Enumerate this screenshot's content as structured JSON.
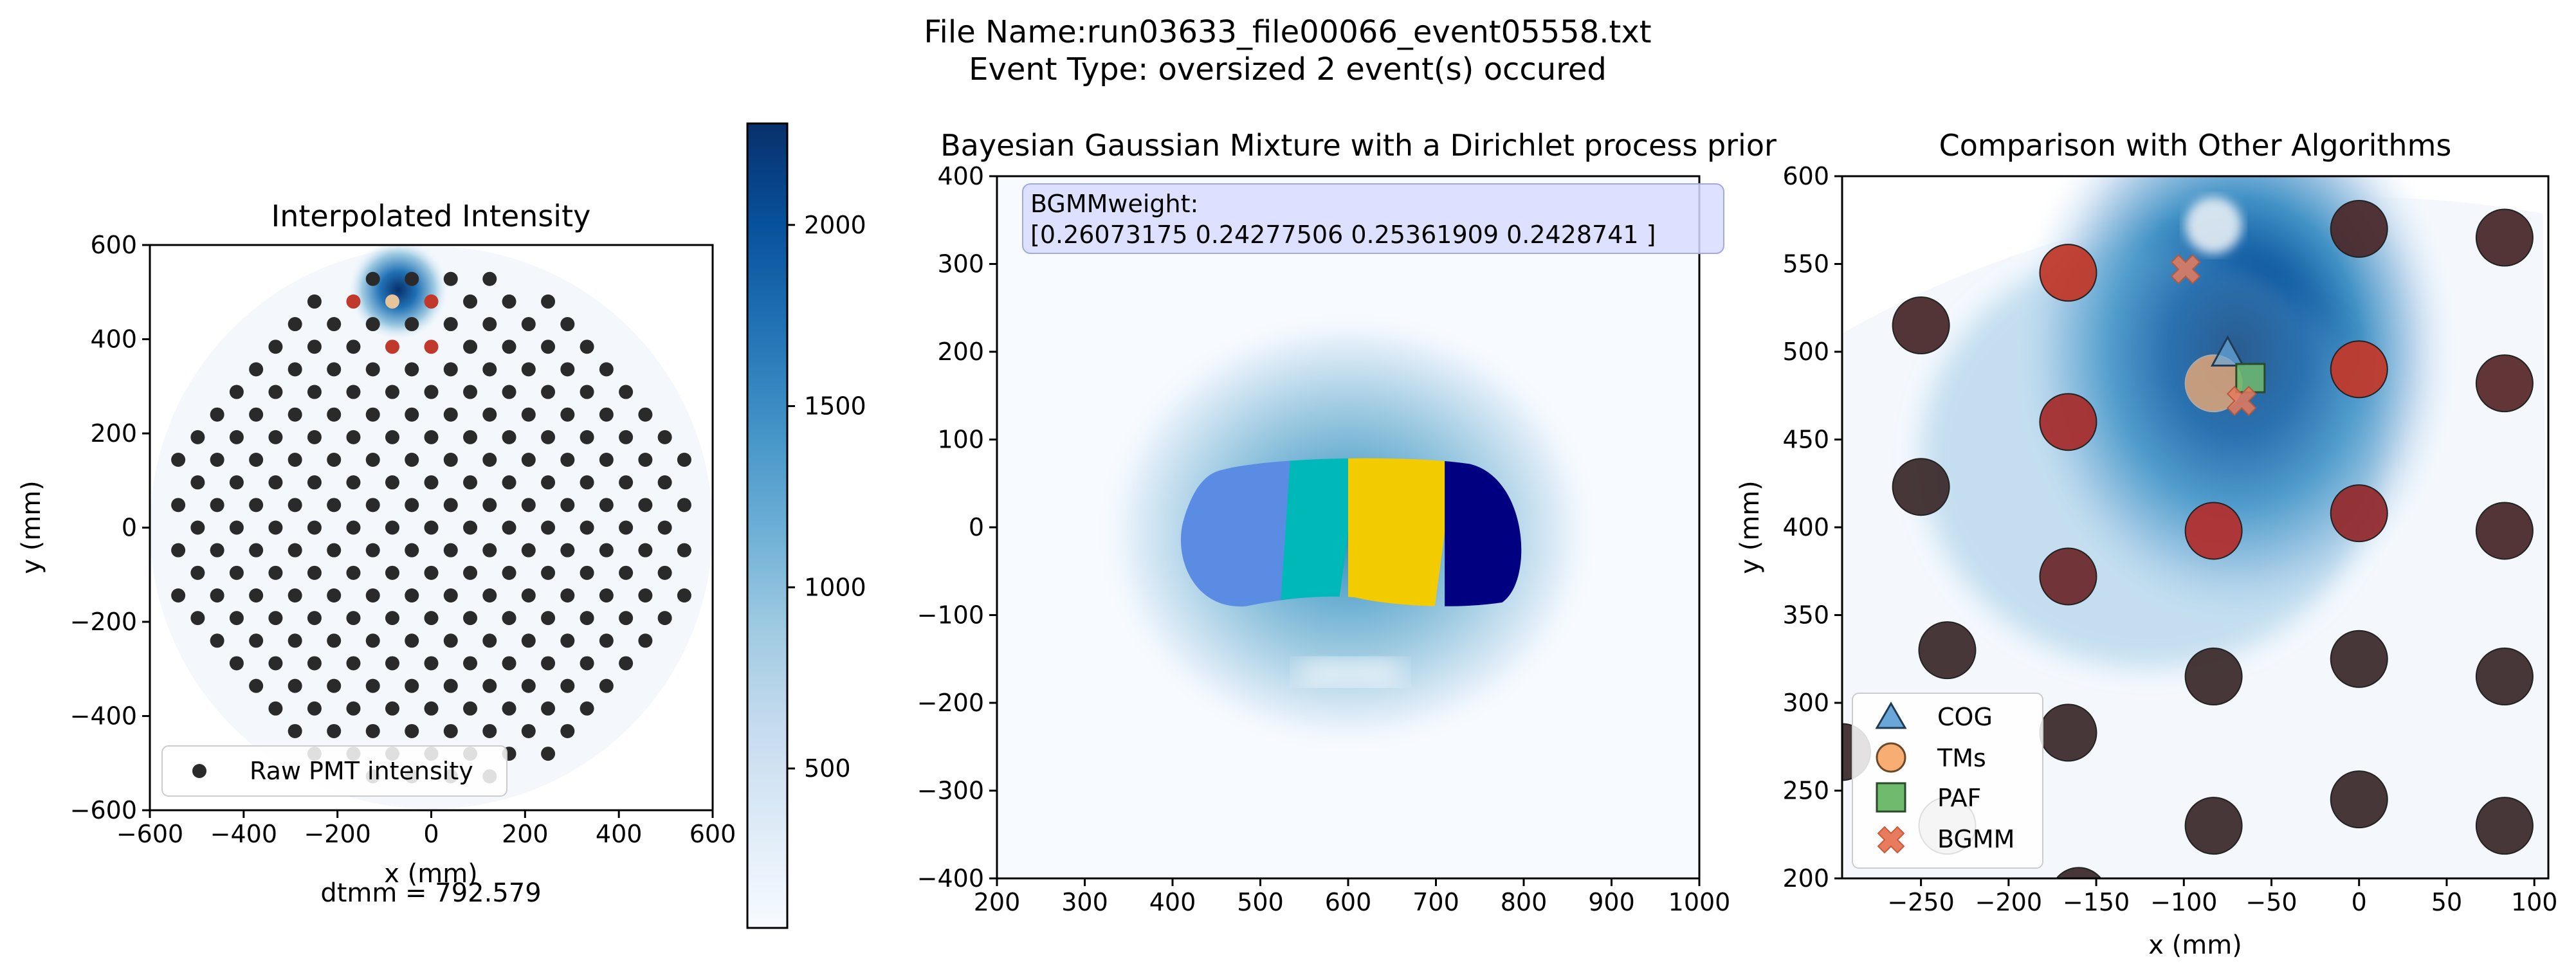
{
  "figure": {
    "suptitle_line1": "File Name:run03633_file00066_event05558.txt",
    "suptitle_line2": "Event Type: oversized    2 event(s) occured"
  },
  "chart_data": [
    {
      "type": "scatter",
      "title": "Interpolated Intensity",
      "xlabel": "x (mm)",
      "ylabel": "y (mm)",
      "xlim": [
        -600,
        600
      ],
      "ylim": [
        -600,
        600
      ],
      "xticks": [
        "−600",
        "−400",
        "−200",
        "0",
        "200",
        "400",
        "600"
      ],
      "yticks": [
        "−600",
        "−400",
        "−200",
        "0",
        "200",
        "400",
        "600"
      ],
      "background": "interpolated intensity heatmap (Blues), hot spot near (-70, 500)",
      "detector_radius_mm": 600,
      "pmt_pitch_x_mm": 83,
      "pmt_pitch_y_mm": 48,
      "pmt_color": "#2a2a2a",
      "hit_color": "#c0392b",
      "peak_color": "#e8c49a",
      "hit_pmts": [
        {
          "x": -166,
          "y": 545
        },
        {
          "x": 0,
          "y": 570
        },
        {
          "x": -83,
          "y": 570
        },
        {
          "x": -166,
          "y": 460
        },
        {
          "x": 0,
          "y": 490
        },
        {
          "x": -83,
          "y": 400
        },
        {
          "x": 0,
          "y": 410
        }
      ],
      "peak_pmt": {
        "x": -83,
        "y": 480
      },
      "legend": [
        "Raw PMT intensity"
      ],
      "legend_loc": "lower-left",
      "annotation": "dtmm = 792.579",
      "colorbar": {
        "cmap": "Blues",
        "min": 60,
        "max": 2280,
        "ticks": [
          "500",
          "1000",
          "1500",
          "2000"
        ],
        "tick_values": [
          500,
          1000,
          1500,
          2000
        ]
      }
    },
    {
      "type": "heatmap",
      "title": "Bayesian Gaussian Mixture with a Dirichlet process prior",
      "xlim": [
        200,
        1000
      ],
      "ylim": [
        -400,
        400
      ],
      "xticks": [
        "200",
        "300",
        "400",
        "500",
        "600",
        "700",
        "800",
        "900",
        "1000"
      ],
      "yticks": [
        "−400",
        "−300",
        "−200",
        "−100",
        "0",
        "100",
        "200",
        "300",
        "400"
      ],
      "annotation_line1": "BGMMweight:",
      "annotation_line2": "[0.26073175 0.24277506 0.25361909 0.2428741 ]",
      "weights": [
        0.26073175,
        0.24277506,
        0.25361909,
        0.2428741
      ],
      "cluster_colors": [
        "#5b8ce3",
        "#00b8b8",
        "#f2cc00",
        "#000080"
      ],
      "cluster_x_ranges": [
        [
          410,
          535
        ],
        [
          535,
          600
        ],
        [
          600,
          710
        ],
        [
          710,
          790
        ]
      ],
      "blob_y_range": [
        -90,
        78
      ]
    },
    {
      "type": "scatter",
      "title": "Comparison with Other Algorithms",
      "xlabel": "x (mm)",
      "ylabel": "y (mm)",
      "xlim": [
        -295,
        108
      ],
      "ylim": [
        200,
        600
      ],
      "xticks": [
        "−250",
        "−200",
        "−150",
        "−100",
        "−50",
        "0",
        "50",
        "100"
      ],
      "yticks": [
        "200",
        "250",
        "300",
        "350",
        "400",
        "450",
        "500",
        "550",
        "600"
      ],
      "pmts": [
        {
          "x": 0,
          "y": 570,
          "c": "#4a2a2c"
        },
        {
          "x": 83,
          "y": 565,
          "c": "#4a2a2c"
        },
        {
          "x": -166,
          "y": 545,
          "c": "#c0392b"
        },
        {
          "x": -250,
          "y": 515,
          "c": "#4a2a2c"
        },
        {
          "x": 0,
          "y": 490,
          "c": "#c0392b"
        },
        {
          "x": 83,
          "y": 482,
          "c": "#5a2a2c"
        },
        {
          "x": -166,
          "y": 460,
          "c": "#a52e2e"
        },
        {
          "x": -250,
          "y": 423,
          "c": "#3d2c2d"
        },
        {
          "x": -83,
          "y": 398,
          "c": "#b02f2f"
        },
        {
          "x": 0,
          "y": 408,
          "c": "#922b2e"
        },
        {
          "x": 83,
          "y": 398,
          "c": "#4a2a2c"
        },
        {
          "x": -166,
          "y": 372,
          "c": "#6b2a2e"
        },
        {
          "x": -235,
          "y": 330,
          "c": "#3d2c2d"
        },
        {
          "x": -83,
          "y": 315,
          "c": "#3d2c2d"
        },
        {
          "x": 0,
          "y": 325,
          "c": "#3d2c2d"
        },
        {
          "x": 83,
          "y": 315,
          "c": "#3d2c2d"
        },
        {
          "x": -166,
          "y": 283,
          "c": "#3d2c2d"
        },
        {
          "x": -295,
          "y": 272,
          "c": "#3d2c2d"
        },
        {
          "x": -83,
          "y": 230,
          "c": "#3d2c2d"
        },
        {
          "x": 0,
          "y": 245,
          "c": "#3d2c2d"
        },
        {
          "x": 83,
          "y": 230,
          "c": "#3d2c2d"
        },
        {
          "x": -235,
          "y": 230,
          "c": "#b5b5b5"
        },
        {
          "x": -160,
          "y": 190,
          "c": "#3d2c2d"
        }
      ],
      "tms_point": {
        "x": -83,
        "y": 482
      },
      "white_blob": {
        "x": -83,
        "y": 572
      },
      "cog": {
        "x": -75,
        "y": 498
      },
      "paf": {
        "x": -62,
        "y": 485
      },
      "bgmm": [
        {
          "x": -99,
          "y": 547
        },
        {
          "x": -67,
          "y": 472
        }
      ],
      "heat_center": {
        "x": -70,
        "y": 500
      },
      "legend": [
        "COG",
        "TMs",
        "PAF",
        "BGMM"
      ],
      "legend_loc": "lower-left",
      "marker_colors": {
        "COG": "#6aa7d8",
        "TMs": "#f8ad72",
        "PAF": "#6ebb6e",
        "BGMM": "#e87a5d"
      }
    }
  ]
}
